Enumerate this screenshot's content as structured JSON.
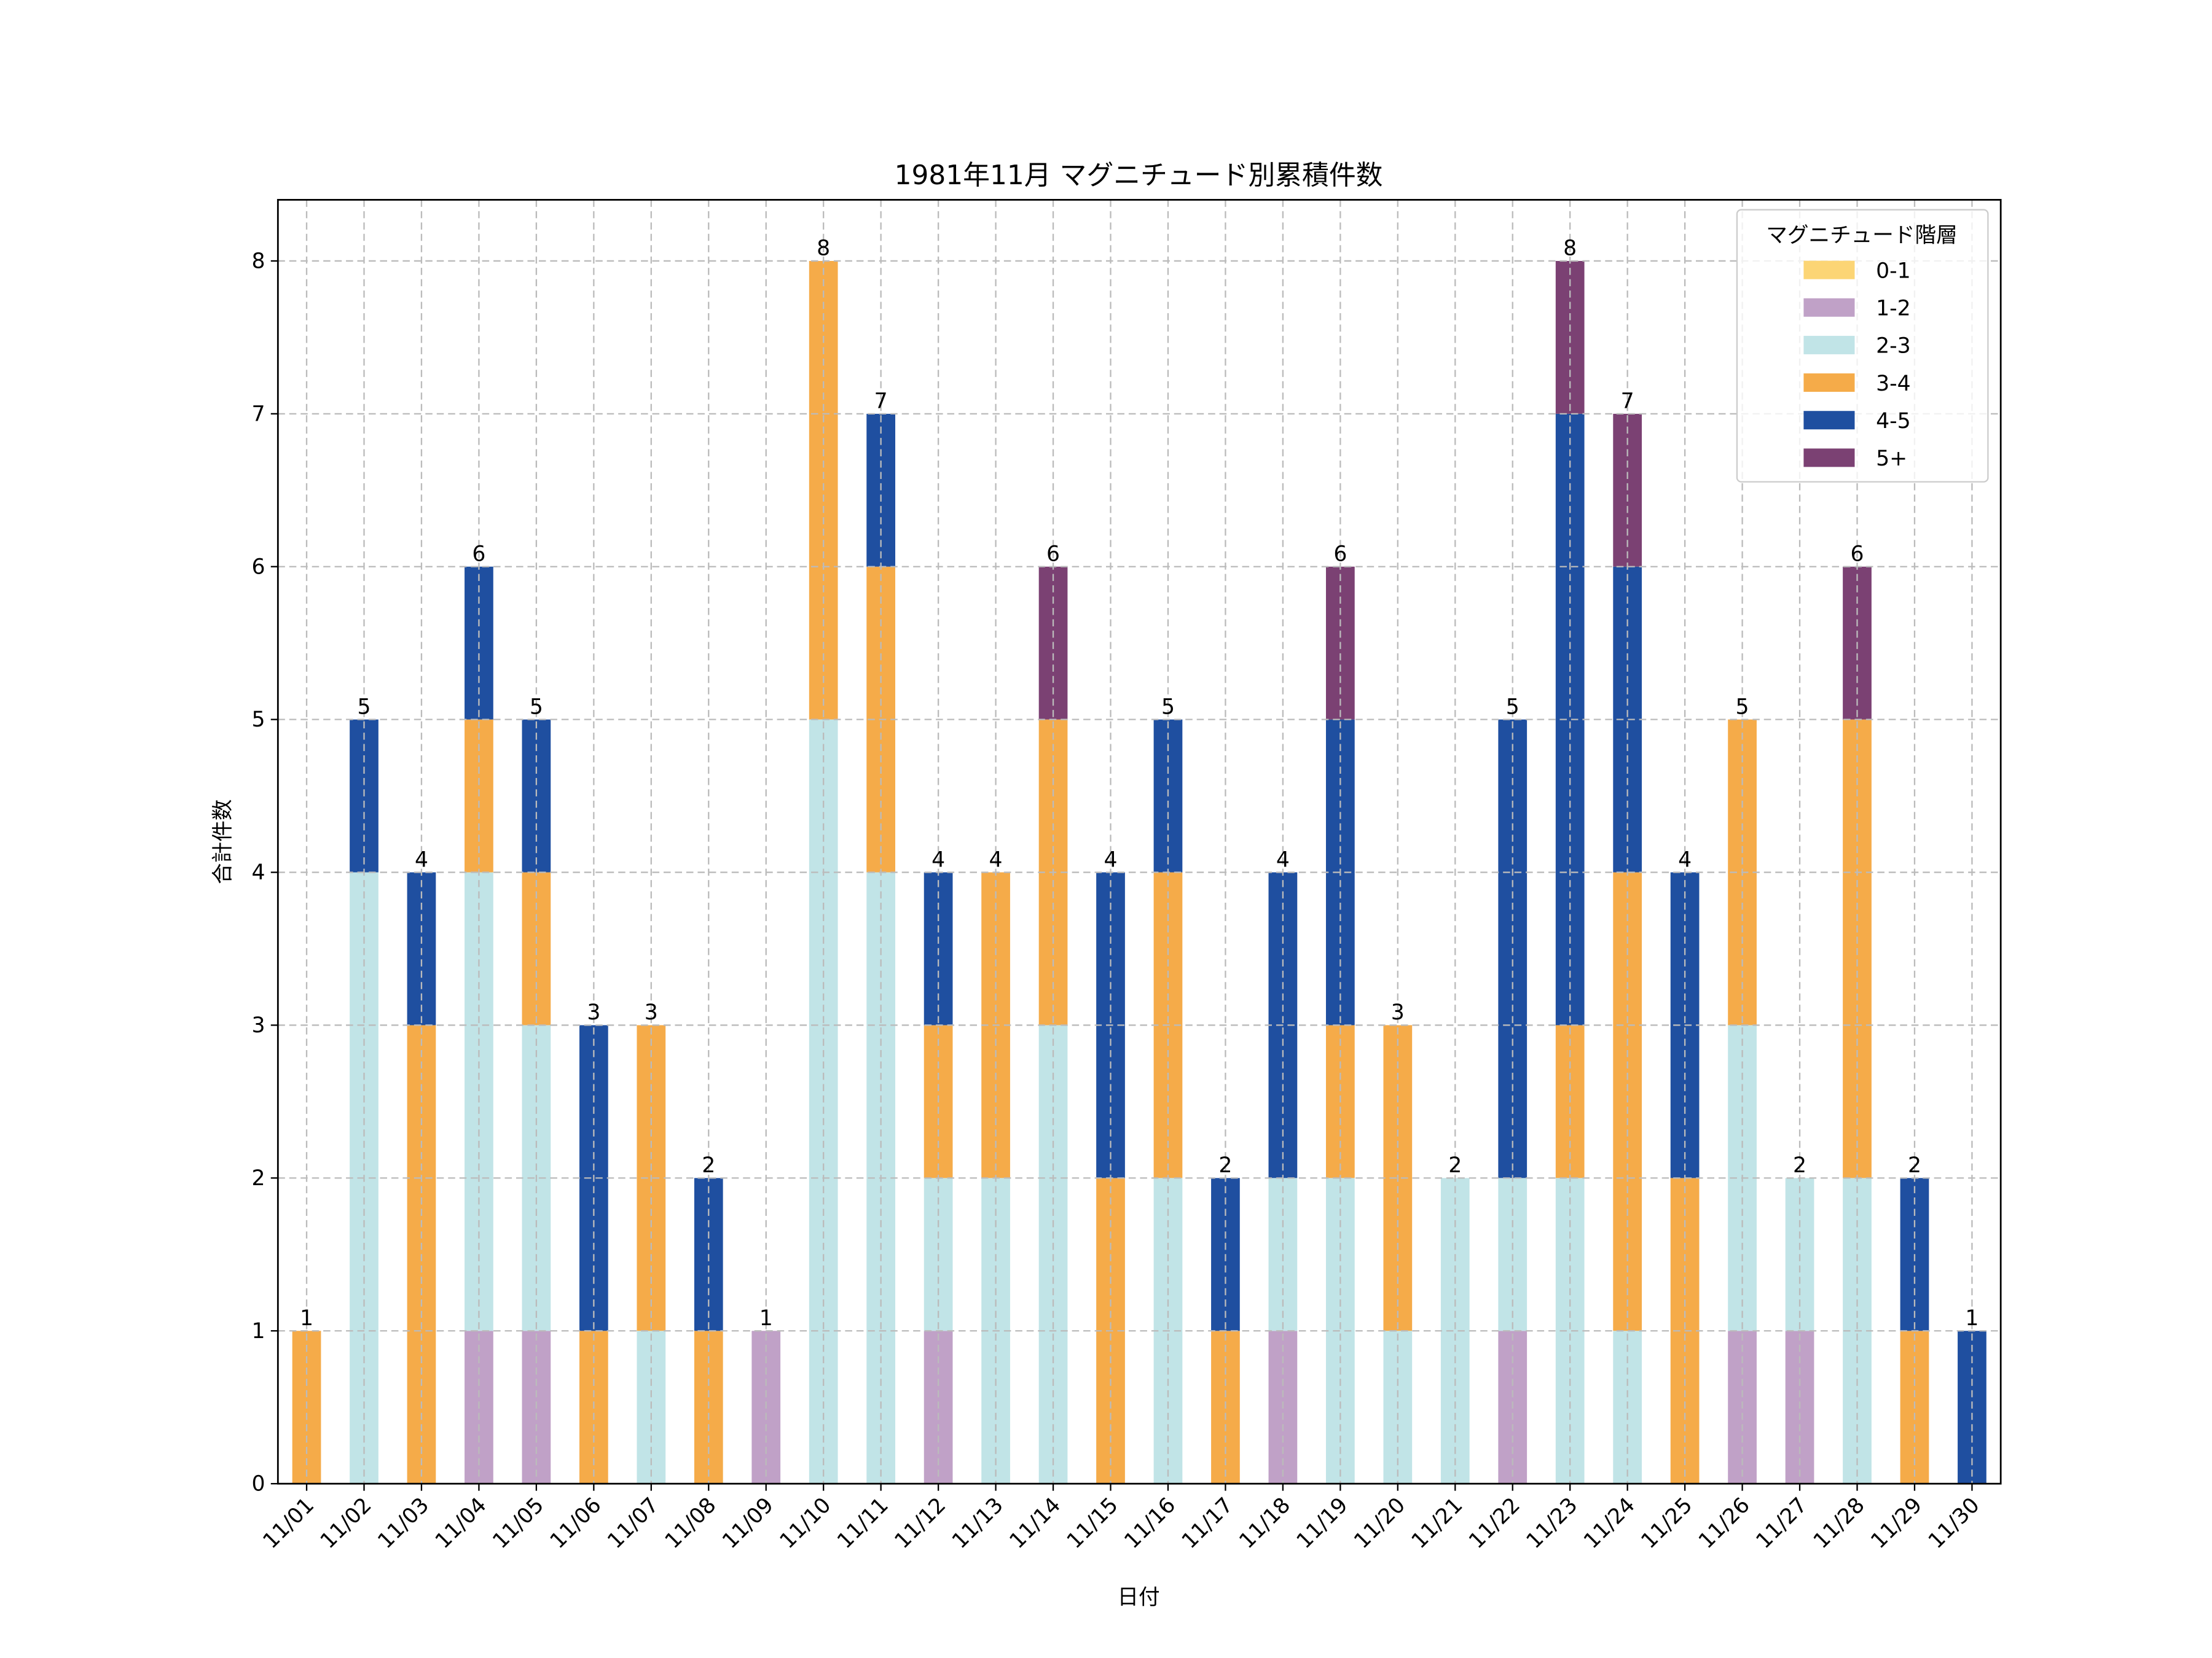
{
  "chart_data": {
    "type": "bar",
    "stacked": true,
    "title": "1981年11月 マグニチュード別累積件数",
    "xlabel": "日付",
    "ylabel": "合計件数",
    "ylim": [
      0,
      8.4
    ],
    "yticks": [
      0,
      1,
      2,
      3,
      4,
      5,
      6,
      7,
      8
    ],
    "grid": true,
    "legend": {
      "title": "マグニチュード階層",
      "placement": "top-right"
    },
    "categories": [
      "11/01",
      "11/02",
      "11/03",
      "11/04",
      "11/05",
      "11/06",
      "11/07",
      "11/08",
      "11/09",
      "11/10",
      "11/11",
      "11/12",
      "11/13",
      "11/14",
      "11/15",
      "11/16",
      "11/17",
      "11/18",
      "11/19",
      "11/20",
      "11/21",
      "11/22",
      "11/23",
      "11/24",
      "11/25",
      "11/26",
      "11/27",
      "11/28",
      "11/29",
      "11/30"
    ],
    "series": [
      {
        "name": "0-1",
        "color": "#fcd575",
        "values": [
          0,
          0,
          0,
          0,
          0,
          0,
          0,
          0,
          0,
          0,
          0,
          0,
          0,
          0,
          0,
          0,
          0,
          0,
          0,
          0,
          0,
          0,
          0,
          0,
          0,
          0,
          0,
          0,
          0,
          0
        ]
      },
      {
        "name": "1-2",
        "color": "#c0a1c7",
        "values": [
          0,
          0,
          0,
          1,
          1,
          0,
          0,
          0,
          1,
          0,
          0,
          1,
          0,
          0,
          0,
          0,
          0,
          1,
          0,
          0,
          0,
          1,
          0,
          0,
          0,
          1,
          1,
          0,
          0,
          0
        ]
      },
      {
        "name": "2-3",
        "color": "#c1e4e7",
        "values": [
          0,
          4,
          0,
          3,
          2,
          0,
          1,
          0,
          0,
          5,
          4,
          1,
          2,
          3,
          0,
          2,
          0,
          1,
          2,
          1,
          2,
          1,
          2,
          1,
          0,
          2,
          1,
          2,
          0,
          0
        ]
      },
      {
        "name": "3-4",
        "color": "#f5ab49",
        "values": [
          1,
          0,
          3,
          1,
          1,
          1,
          2,
          1,
          0,
          3,
          2,
          1,
          2,
          2,
          2,
          2,
          1,
          0,
          1,
          2,
          0,
          0,
          1,
          3,
          2,
          2,
          0,
          3,
          1,
          0
        ]
      },
      {
        "name": "4-5",
        "color": "#1f4fa0",
        "values": [
          0,
          1,
          1,
          1,
          1,
          2,
          0,
          1,
          0,
          0,
          1,
          1,
          0,
          0,
          2,
          1,
          1,
          2,
          2,
          0,
          0,
          3,
          4,
          2,
          2,
          0,
          0,
          0,
          1,
          1
        ]
      },
      {
        "name": "5+",
        "color": "#7b4173",
        "values": [
          0,
          0,
          0,
          0,
          0,
          0,
          0,
          0,
          0,
          0,
          0,
          0,
          0,
          1,
          0,
          0,
          0,
          0,
          1,
          0,
          0,
          0,
          1,
          1,
          0,
          0,
          0,
          1,
          0,
          0
        ]
      }
    ],
    "totals": [
      1,
      5,
      4,
      6,
      5,
      3,
      3,
      2,
      1,
      8,
      7,
      4,
      4,
      6,
      4,
      5,
      2,
      4,
      6,
      3,
      2,
      5,
      8,
      7,
      4,
      5,
      2,
      6,
      2,
      1
    ]
  }
}
